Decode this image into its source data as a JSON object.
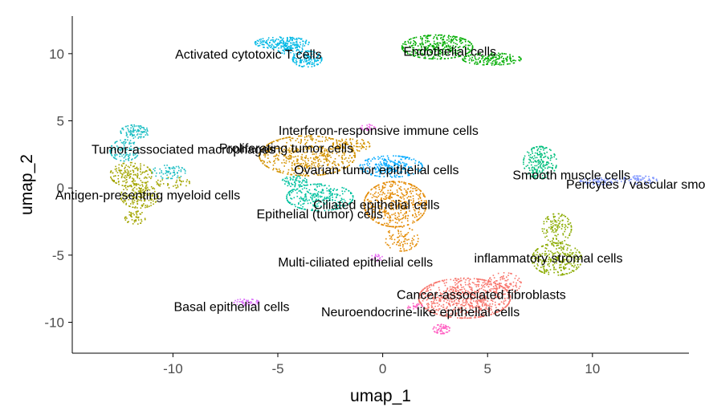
{
  "chart_data": {
    "type": "scatter",
    "xlabel": "umap_1",
    "ylabel": "umap_2",
    "xlim": [
      -14.8,
      14.6
    ],
    "ylim": [
      -12.3,
      12.8
    ],
    "x_ticks": [
      -10,
      -5,
      0,
      5,
      10
    ],
    "y_ticks": [
      -10,
      -5,
      0,
      5,
      10
    ],
    "x_tick_labels": [
      "-10",
      "-5",
      "0",
      "5",
      "10"
    ],
    "y_tick_labels": [
      "-10",
      "-5",
      "0",
      "5",
      "10"
    ],
    "grid": false,
    "legend": "none",
    "clusters": [
      {
        "label": "Activated cytotoxic T cells",
        "label_x": -6.4,
        "label_y": 10.0,
        "color": "#00B8E5",
        "blobs": [
          {
            "cx": -4.8,
            "cy": 10.8,
            "rx": 1.3,
            "ry": 0.45,
            "n": 180
          },
          {
            "cx": -3.6,
            "cy": 9.6,
            "rx": 0.7,
            "ry": 0.6,
            "n": 140
          },
          {
            "cx": -4.4,
            "cy": 10.3,
            "rx": 0.6,
            "ry": 0.35,
            "n": 60
          }
        ]
      },
      {
        "label": "Endothelial cells",
        "label_x": 3.2,
        "label_y": 10.2,
        "color": "#00AD00",
        "blobs": [
          {
            "cx": 2.6,
            "cy": 10.5,
            "rx": 1.7,
            "ry": 0.9,
            "n": 380
          },
          {
            "cx": 5.2,
            "cy": 9.6,
            "rx": 1.4,
            "ry": 0.45,
            "n": 180
          }
        ]
      },
      {
        "label": "Interferon-responsive immune cells",
        "label_x": -0.2,
        "label_y": 4.3,
        "color": "#F066EA",
        "blobs": [
          {
            "cx": -0.7,
            "cy": 4.5,
            "rx": 0.35,
            "ry": 0.25,
            "n": 25
          }
        ]
      },
      {
        "label": "Tumor-associated macrophages",
        "label_x": -9.5,
        "label_y": 2.9,
        "color": "#1FBFC4",
        "blobs": [
          {
            "cx": -11.8,
            "cy": 4.2,
            "rx": 0.7,
            "ry": 0.5,
            "n": 100
          },
          {
            "cx": -12.3,
            "cy": 2.8,
            "rx": 0.7,
            "ry": 0.8,
            "n": 110
          },
          {
            "cx": -10.2,
            "cy": 1.2,
            "rx": 0.8,
            "ry": 0.5,
            "n": 70
          }
        ]
      },
      {
        "label": "Proliferating tumor cells",
        "label_x": -4.6,
        "label_y": 3.0,
        "color": "#D39200",
        "blobs": [
          {
            "cx": -3.6,
            "cy": 2.4,
            "rx": 2.3,
            "ry": 1.5,
            "n": 560
          },
          {
            "cx": -1.5,
            "cy": 3.2,
            "rx": 0.9,
            "ry": 0.5,
            "n": 80
          }
        ]
      },
      {
        "label": "Antigen-presenting myeloid cells",
        "label_x": -11.2,
        "label_y": -0.5,
        "color": "#A3A500",
        "blobs": [
          {
            "cx": -12.0,
            "cy": 1.0,
            "rx": 1.0,
            "ry": 0.9,
            "n": 180
          },
          {
            "cx": -11.6,
            "cy": -0.6,
            "rx": 0.9,
            "ry": 0.9,
            "n": 170
          },
          {
            "cx": -11.8,
            "cy": -2.2,
            "rx": 0.5,
            "ry": 0.5,
            "n": 50
          },
          {
            "cx": -10.0,
            "cy": 0.4,
            "rx": 0.8,
            "ry": 0.4,
            "n": 40
          }
        ]
      },
      {
        "label": "Ovarian tumor epithelial cells",
        "label_x": -0.3,
        "label_y": 1.4,
        "color": "#00A9FF",
        "blobs": [
          {
            "cx": 0.4,
            "cy": 1.6,
            "rx": 1.5,
            "ry": 0.8,
            "n": 240
          }
        ]
      },
      {
        "label": "Smooth muscle cells",
        "label_x": 9.0,
        "label_y": 1.0,
        "color": "#00BF7D",
        "blobs": [
          {
            "cx": 7.5,
            "cy": 1.9,
            "rx": 0.8,
            "ry": 1.2,
            "n": 200
          }
        ]
      },
      {
        "label": "Pericytes / vascular smooth mu",
        "label_x": 13.0,
        "label_y": 0.3,
        "color": "#7F96FF",
        "blobs": [
          {
            "cx": 10.3,
            "cy": 0.5,
            "rx": 0.9,
            "ry": 0.25,
            "n": 70
          },
          {
            "cx": 12.2,
            "cy": 0.6,
            "rx": 0.9,
            "ry": 0.3,
            "n": 70
          }
        ]
      },
      {
        "label": "Ciliated epithelial cells",
        "label_x": -0.3,
        "label_y": -1.2,
        "color": "#E38900",
        "blobs": [
          {
            "cx": 0.6,
            "cy": -1.2,
            "rx": 1.5,
            "ry": 1.7,
            "n": 500
          },
          {
            "cx": 0.9,
            "cy": -3.8,
            "rx": 0.8,
            "ry": 0.9,
            "n": 90
          }
        ]
      },
      {
        "label": "Epithelial (tumor) cells",
        "label_x": -3.0,
        "label_y": -1.9,
        "color": "#00C19F",
        "blobs": [
          {
            "cx": -3.0,
            "cy": -0.7,
            "rx": 1.6,
            "ry": 1.0,
            "n": 300
          },
          {
            "cx": -4.2,
            "cy": 0.5,
            "rx": 0.6,
            "ry": 0.4,
            "n": 60
          }
        ]
      },
      {
        "label": "inflammatory stromal cells",
        "label_x": 7.9,
        "label_y": -5.2,
        "color": "#8BAB00",
        "blobs": [
          {
            "cx": 8.3,
            "cy": -3.0,
            "rx": 0.7,
            "ry": 1.1,
            "n": 130
          },
          {
            "cx": 8.3,
            "cy": -5.3,
            "rx": 1.2,
            "ry": 1.2,
            "n": 280
          }
        ]
      },
      {
        "label": "Multi-ciliated epithelial cells",
        "label_x": -1.3,
        "label_y": -5.5,
        "color": "#E76BF3",
        "blobs": [
          {
            "cx": -0.3,
            "cy": -5.2,
            "rx": 0.3,
            "ry": 0.25,
            "n": 20
          }
        ]
      },
      {
        "label": "Cancer-associated fibroblasts",
        "label_x": 4.7,
        "label_y": -7.9,
        "color": "#F8766D",
        "blobs": [
          {
            "cx": 3.9,
            "cy": -8.2,
            "rx": 2.2,
            "ry": 1.5,
            "n": 750
          },
          {
            "cx": 5.8,
            "cy": -7.1,
            "rx": 0.8,
            "ry": 0.8,
            "n": 100
          }
        ]
      },
      {
        "label": "Basal epithelial cells",
        "label_x": -7.2,
        "label_y": -8.8,
        "color": "#DB72FB",
        "blobs": [
          {
            "cx": -6.5,
            "cy": -8.5,
            "rx": 0.6,
            "ry": 0.25,
            "n": 50
          }
        ]
      },
      {
        "label": "Neuroendocrine-like epithelial cells",
        "label_x": 1.8,
        "label_y": -9.2,
        "color": "#FF61C3",
        "blobs": [
          {
            "cx": 2.8,
            "cy": -10.5,
            "rx": 0.4,
            "ry": 0.35,
            "n": 60
          },
          {
            "cx": 1.5,
            "cy": -8.8,
            "rx": 0.4,
            "ry": 0.2,
            "n": 25
          }
        ]
      }
    ]
  }
}
